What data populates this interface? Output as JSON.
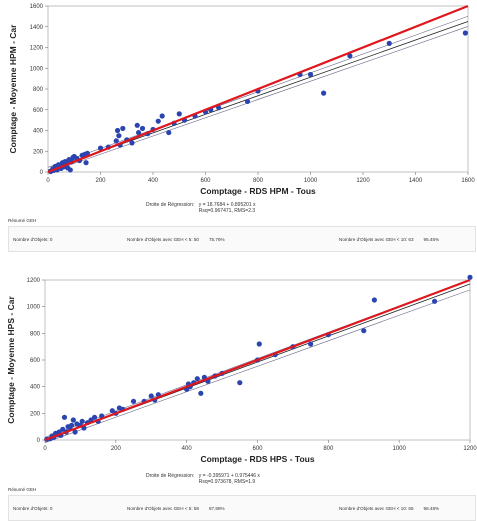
{
  "panels": [
    {
      "summary": {
        "title": "Résumé GEH",
        "objects_label": "Nombre d'Objets: 0",
        "geh5_label": "Nombre d'Objets avec GEH < 5: 50",
        "geh5_pct": "75.76%",
        "geh10_label": "Nombre d'Objets avec GEH < 10: 63",
        "geh10_pct": "95.45%"
      },
      "regression": {
        "label": "Droite de Régression:",
        "equation": "y = 18.7684 + 0.895201 x",
        "stats": "Rsq=0.967471, RMS=2.3"
      }
    },
    {
      "summary": {
        "title": "Résumé GEH",
        "objects_label": "Nombre d'Objets: 0",
        "geh5_label": "Nombre d'Objets avec GEH < 5: 58",
        "geh5_pct": "87.88%",
        "geh10_label": "Nombre d'Objets avec GEH < 10: 65",
        "geh10_pct": "98.48%"
      },
      "regression": {
        "label": "Droite de Régression:",
        "equation": "y = -0.395971 + 0.975446 x",
        "stats": "Rsq=0.973678, RMS=1.9"
      }
    }
  ],
  "chart_data": [
    {
      "type": "scatter",
      "title": "",
      "xlabel": "Comptage - RDS HPM - Tous",
      "ylabel": "Comptage - Moyenne HPM - Car",
      "xlim": [
        0,
        1600
      ],
      "ylim": [
        0,
        1600
      ],
      "xticks": [
        0,
        200,
        400,
        600,
        800,
        1000,
        1200,
        1400,
        1600
      ],
      "yticks": [
        0,
        200,
        400,
        600,
        800,
        1000,
        1200,
        1400,
        1600
      ],
      "grid": false,
      "reference_line": {
        "from": [
          0,
          0
        ],
        "to": [
          1600,
          1600
        ],
        "color": "#e0161c"
      },
      "regression_line": {
        "intercept": 18.7684,
        "slope": 0.895201
      },
      "band_lines": [
        {
          "intercept": 45,
          "slope": 0.91
        },
        {
          "intercept": -5,
          "slope": 0.88
        }
      ],
      "colors": {
        "points": "#2b45b0",
        "reference": "#e0161c",
        "regression": "#222222",
        "band": "#6a6a8a"
      },
      "points": [
        [
          10,
          5
        ],
        [
          18,
          30
        ],
        [
          22,
          15
        ],
        [
          28,
          55
        ],
        [
          30,
          40
        ],
        [
          35,
          20
        ],
        [
          40,
          70
        ],
        [
          45,
          60
        ],
        [
          50,
          35
        ],
        [
          55,
          90
        ],
        [
          60,
          50
        ],
        [
          65,
          100
        ],
        [
          70,
          80
        ],
        [
          75,
          40
        ],
        [
          80,
          120
        ],
        [
          85,
          20
        ],
        [
          90,
          100
        ],
        [
          95,
          140
        ],
        [
          100,
          150
        ],
        [
          110,
          130
        ],
        [
          120,
          110
        ],
        [
          130,
          160
        ],
        [
          140,
          170
        ],
        [
          145,
          90
        ],
        [
          150,
          180
        ],
        [
          200,
          230
        ],
        [
          230,
          240
        ],
        [
          260,
          300
        ],
        [
          265,
          400
        ],
        [
          270,
          350
        ],
        [
          275,
          260
        ],
        [
          285,
          420
        ],
        [
          300,
          310
        ],
        [
          320,
          280
        ],
        [
          340,
          450
        ],
        [
          345,
          380
        ],
        [
          360,
          420
        ],
        [
          380,
          370
        ],
        [
          400,
          410
        ],
        [
          420,
          490
        ],
        [
          435,
          540
        ],
        [
          460,
          380
        ],
        [
          480,
          470
        ],
        [
          500,
          560
        ],
        [
          520,
          500
        ],
        [
          560,
          540
        ],
        [
          600,
          580
        ],
        [
          620,
          600
        ],
        [
          650,
          620
        ],
        [
          760,
          680
        ],
        [
          800,
          780
        ],
        [
          960,
          940
        ],
        [
          1000,
          940
        ],
        [
          1050,
          760
        ],
        [
          1150,
          1120
        ],
        [
          1300,
          1240
        ],
        [
          1590,
          1340
        ]
      ]
    },
    {
      "type": "scatter",
      "title": "",
      "xlabel": "Comptage - RDS HPS - Tous",
      "ylabel": "Comptage - Moyenne HPS - Car",
      "xlim": [
        0,
        1200
      ],
      "ylim": [
        0,
        1200
      ],
      "xticks": [
        0,
        200,
        400,
        600,
        800,
        1000,
        1200
      ],
      "yticks": [
        0,
        200,
        400,
        600,
        800,
        1000,
        1200
      ],
      "grid": false,
      "reference_line": {
        "from": [
          0,
          0
        ],
        "to": [
          1200,
          1200
        ],
        "color": "#e0161c"
      },
      "regression_line": {
        "intercept": -0.395971,
        "slope": 0.975446
      },
      "band_lines": [
        {
          "intercept": 20,
          "slope": 0.985
        },
        {
          "intercept": -20,
          "slope": 0.955
        }
      ],
      "colors": {
        "points": "#2b45b0",
        "reference": "#e0161c",
        "regression": "#222222",
        "band": "#6a6a8a"
      },
      "points": [
        [
          5,
          5
        ],
        [
          15,
          10
        ],
        [
          20,
          30
        ],
        [
          25,
          20
        ],
        [
          30,
          50
        ],
        [
          35,
          40
        ],
        [
          40,
          60
        ],
        [
          45,
          35
        ],
        [
          50,
          80
        ],
        [
          55,
          170
        ],
        [
          60,
          60
        ],
        [
          65,
          100
        ],
        [
          70,
          90
        ],
        [
          75,
          110
        ],
        [
          80,
          150
        ],
        [
          85,
          60
        ],
        [
          90,
          120
        ],
        [
          100,
          110
        ],
        [
          105,
          140
        ],
        [
          110,
          90
        ],
        [
          120,
          130
        ],
        [
          130,
          150
        ],
        [
          140,
          170
        ],
        [
          150,
          140
        ],
        [
          160,
          180
        ],
        [
          190,
          220
        ],
        [
          200,
          200
        ],
        [
          210,
          240
        ],
        [
          220,
          230
        ],
        [
          250,
          290
        ],
        [
          280,
          290
        ],
        [
          300,
          330
        ],
        [
          310,
          300
        ],
        [
          320,
          340
        ],
        [
          400,
          380
        ],
        [
          405,
          420
        ],
        [
          410,
          400
        ],
        [
          420,
          430
        ],
        [
          430,
          460
        ],
        [
          440,
          350
        ],
        [
          450,
          470
        ],
        [
          460,
          440
        ],
        [
          480,
          480
        ],
        [
          500,
          500
        ],
        [
          550,
          430
        ],
        [
          600,
          600
        ],
        [
          605,
          720
        ],
        [
          650,
          640
        ],
        [
          700,
          700
        ],
        [
          750,
          720
        ],
        [
          800,
          790
        ],
        [
          900,
          820
        ],
        [
          930,
          1050
        ],
        [
          1100,
          1040
        ],
        [
          1200,
          1220
        ]
      ]
    }
  ]
}
